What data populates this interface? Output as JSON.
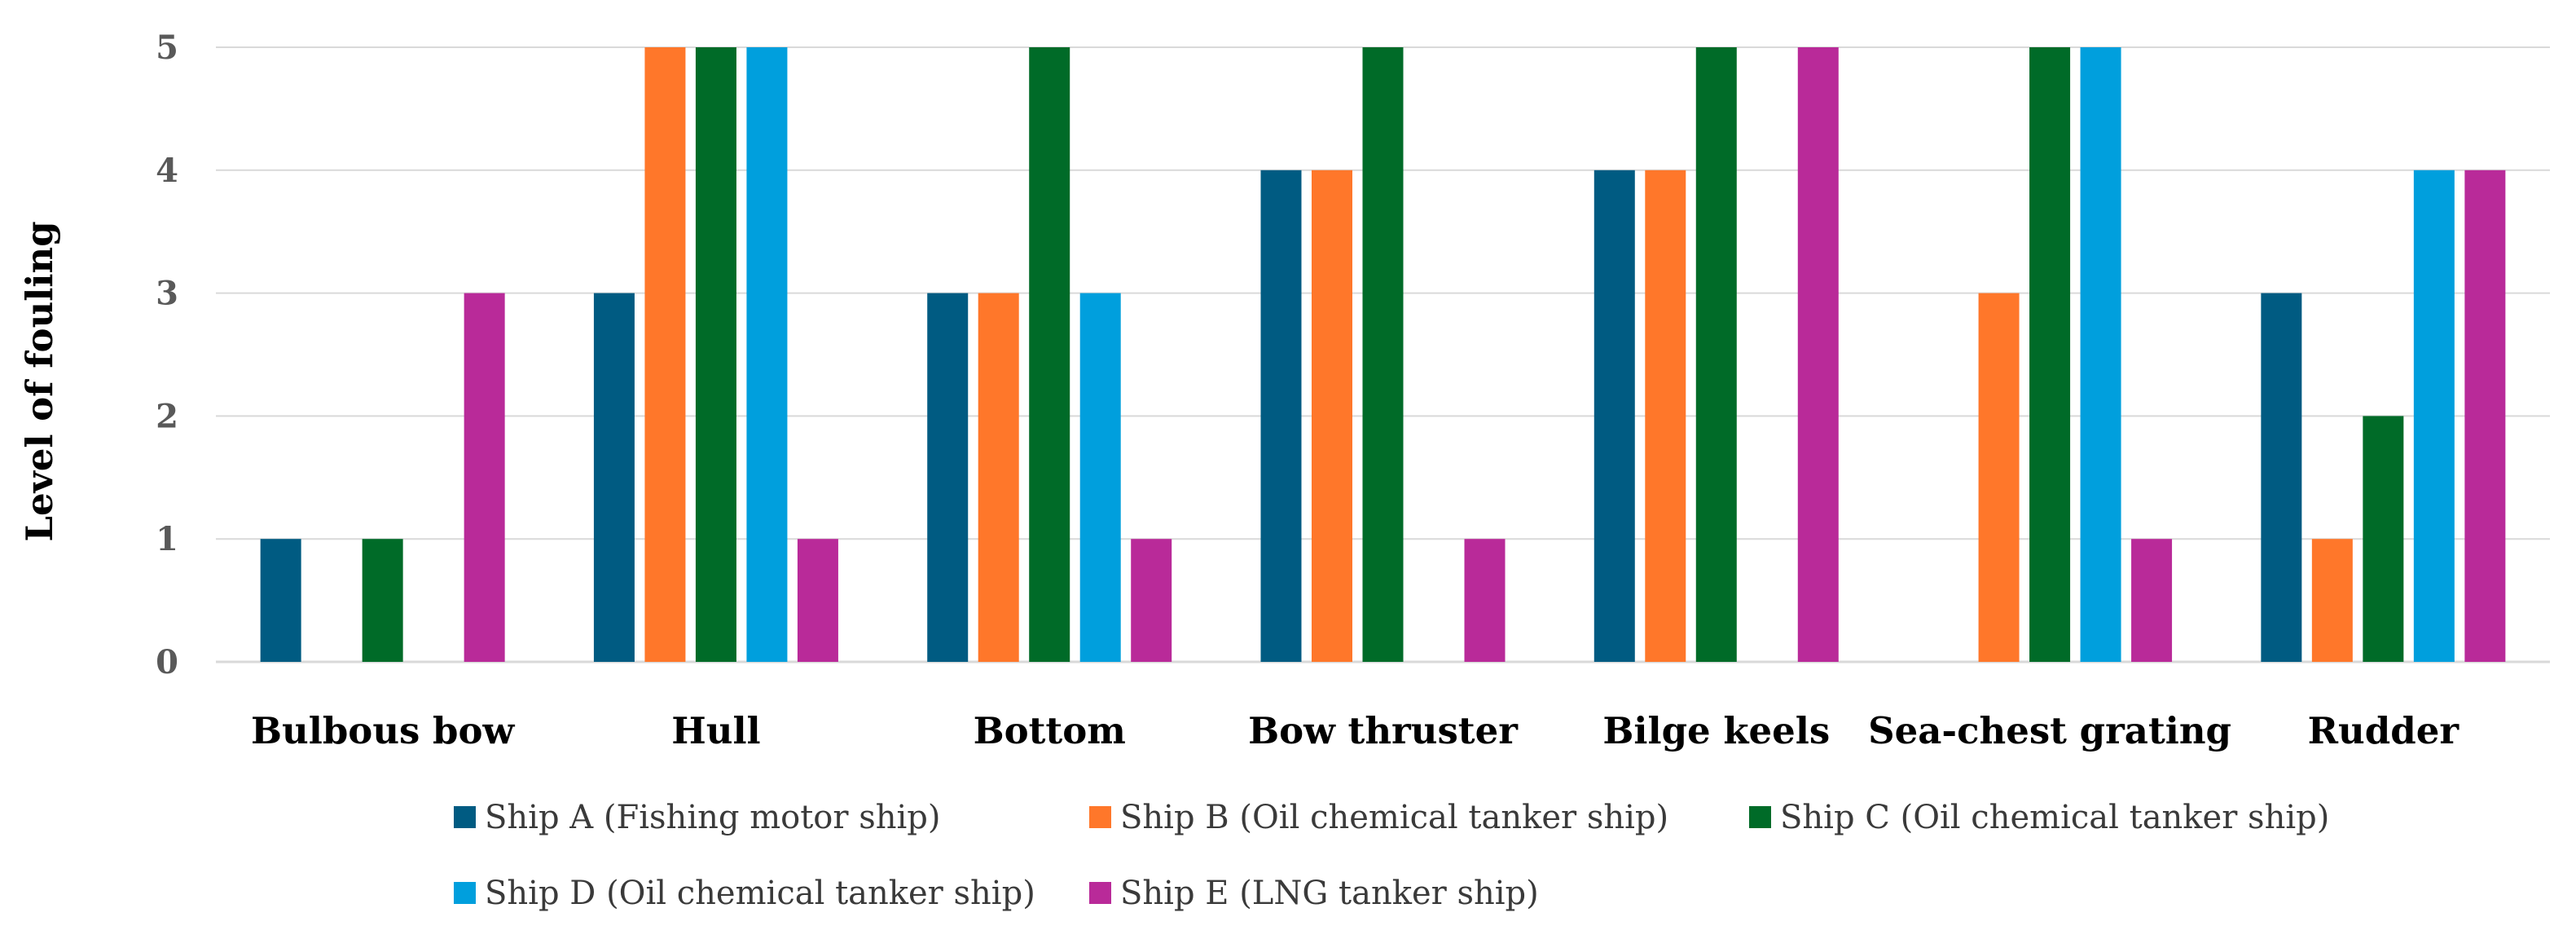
{
  "chart_data": {
    "type": "bar",
    "title": "",
    "xlabel": "",
    "ylabel": "Level of fouling",
    "ylim": [
      0,
      5
    ],
    "yticks": [
      "0",
      "1",
      "2",
      "3",
      "4",
      "5"
    ],
    "grid": true,
    "legend_position": "bottom",
    "categories": [
      "Bulbous bow",
      "Hull",
      "Bottom",
      "Bow thruster",
      "Bilge keels",
      "Sea-chest grating",
      "Rudder"
    ],
    "series": [
      {
        "name": "Ship A (Fishing motor ship)",
        "color": "#005b82",
        "values": [
          1,
          3,
          3,
          4,
          4,
          0,
          3
        ]
      },
      {
        "name": "Ship B (Oil chemical tanker ship)",
        "color": "#ff772a",
        "values": [
          0,
          5,
          3,
          4,
          4,
          3,
          1
        ]
      },
      {
        "name": "Ship C (Oil chemical tanker ship)",
        "color": "#006b28",
        "values": [
          1,
          5,
          5,
          5,
          5,
          5,
          2
        ]
      },
      {
        "name": "Ship D (Oil chemical tanker ship)",
        "color": "#009fdd",
        "values": [
          0,
          5,
          3,
          0,
          0,
          5,
          4
        ]
      },
      {
        "name": "Ship E (LNG tanker ship)",
        "color": "#b92a99",
        "values": [
          3,
          1,
          1,
          1,
          5,
          1,
          4
        ]
      }
    ]
  }
}
